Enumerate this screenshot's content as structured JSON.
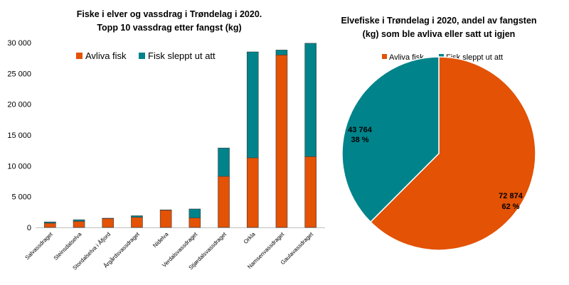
{
  "chart_data": [
    {
      "type": "bar",
      "stacked": true,
      "title": "Fiske i elver og vassdrag i Trøndelag i 2020.",
      "subtitle": "Topp 10 vassdrag etter fangst (kg)",
      "categories": [
        "Salvassdraget",
        "Steinsdalselva",
        "Stordalselva i Åfjord",
        "Årgårdsvassdraget",
        "Nidelva",
        "Verdalsvassdraget",
        "Stjørdalsvassdraget",
        "Orkla",
        "Namsenvassdraget",
        "Gaulavassdraget"
      ],
      "series": [
        {
          "name": "Avliva fisk",
          "color": "#e35205",
          "values": [
            700,
            1000,
            1450,
            1650,
            2800,
            1550,
            8300,
            11300,
            28000,
            11500
          ]
        },
        {
          "name": "Fisk sleppt ut att",
          "color": "#00838a",
          "values": [
            200,
            250,
            50,
            250,
            50,
            1450,
            4600,
            17200,
            800,
            18400
          ]
        }
      ],
      "ylim": [
        0,
        30000
      ],
      "yticks": [
        "0",
        "5 000",
        "10 000",
        "15 000",
        "20 000",
        "25 000",
        "30 000"
      ],
      "ytick_values": [
        0,
        5000,
        10000,
        15000,
        20000,
        25000,
        30000
      ],
      "legend_position": "top-left",
      "grid": false
    },
    {
      "type": "pie",
      "title_line1": "Elvefiske i Trøndelag i 2020, andel av fangsten",
      "title_line2": "(kg) som ble avliva eller satt ut igjen",
      "slices": [
        {
          "name": "Avliva fisk",
          "value": 72874,
          "value_label": "72 874",
          "percent_label": "62 %",
          "color": "#e35205"
        },
        {
          "name": "Fisk sleppt ut att",
          "value": 43764,
          "value_label": "43 764",
          "percent_label": "38 %",
          "color": "#00838a"
        }
      ],
      "legend_position": "top"
    }
  ]
}
